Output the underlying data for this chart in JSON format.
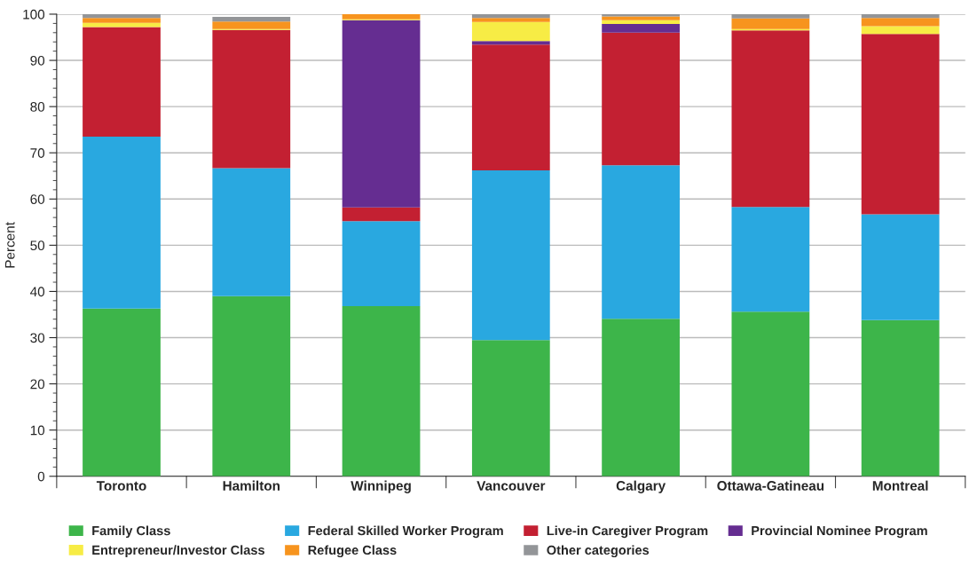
{
  "chart_data": {
    "type": "bar",
    "stacked": true,
    "ylabel": "Percent",
    "categories": [
      "Toronto",
      "Hamilton",
      "Winnipeg",
      "Vancouver",
      "Calgary",
      "Ottawa-Gatineau",
      "Montreal"
    ],
    "series": [
      {
        "name": "Family Class",
        "color": "#3db54a",
        "values": [
          36.3,
          39.0,
          36.8,
          29.5,
          34.1,
          35.6,
          33.8
        ]
      },
      {
        "name": "Federal Skilled Worker Program",
        "color": "#29a8e0",
        "values": [
          37.2,
          27.7,
          18.4,
          36.7,
          33.2,
          22.7,
          22.9
        ]
      },
      {
        "name": "Live-in Caregiver Program",
        "color": "#c32032",
        "values": [
          23.7,
          29.9,
          3.0,
          27.2,
          28.7,
          38.2,
          39.0
        ]
      },
      {
        "name": "Provincial Nominee Program",
        "color": "#652d91",
        "values": [
          0,
          0,
          40.5,
          0.8,
          1.9,
          0,
          0
        ]
      },
      {
        "name": "Entrepreneur/Investor Class",
        "color": "#f7ec45",
        "values": [
          0.9,
          0.2,
          0.2,
          4.1,
          0.8,
          0.3,
          1.7
        ]
      },
      {
        "name": "Refugee Class",
        "color": "#f7941e",
        "values": [
          1.1,
          1.6,
          1.1,
          0.9,
          0.8,
          2.3,
          1.8
        ]
      },
      {
        "name": "Other categories",
        "color": "#939598",
        "values": [
          0.8,
          1.0,
          0,
          0.8,
          0.5,
          0.9,
          0.8
        ]
      }
    ],
    "ylim": [
      0,
      100
    ],
    "yticks": [
      0,
      10,
      20,
      30,
      40,
      50,
      60,
      70,
      80,
      90,
      100
    ],
    "grid": "y",
    "legend": "bottom"
  }
}
